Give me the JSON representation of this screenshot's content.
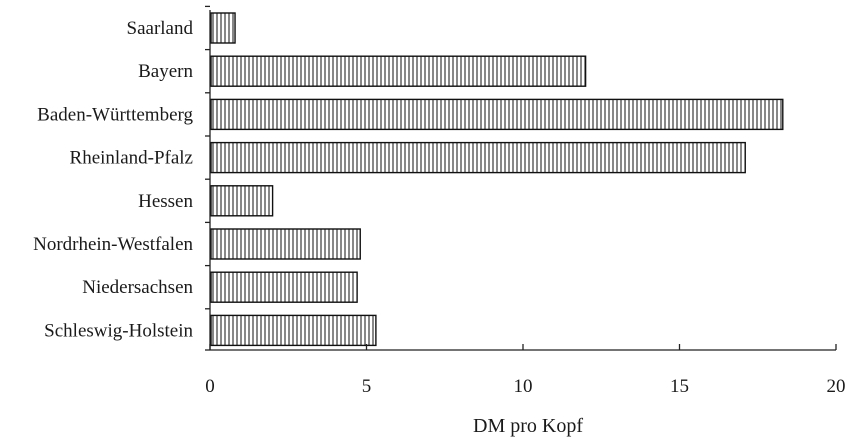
{
  "chart_data": {
    "type": "bar",
    "orientation": "horizontal",
    "categories": [
      "Saarland",
      "Bayern",
      "Baden-Württemberg",
      "Rheinland-Pfalz",
      "Hessen",
      "Nordrhein-Westfalen",
      "Niedersachsen",
      "Schleswig-Holstein"
    ],
    "values": [
      0.8,
      12.0,
      18.3,
      17.1,
      2.0,
      4.8,
      4.7,
      5.3
    ],
    "xlabel": "DM pro Kopf",
    "xlim": [
      0,
      20
    ],
    "xticks": [
      "0",
      "5",
      "10",
      "15",
      "20"
    ],
    "grid": false,
    "bar_fill": "vertical-hatch",
    "bar_color": "#111111"
  }
}
